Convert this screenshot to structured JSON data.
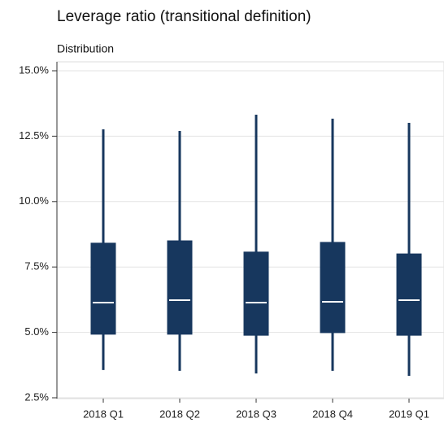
{
  "chart_data": {
    "type": "box",
    "title": "Leverage ratio (transitional definition)",
    "subtitle": "Distribution",
    "categories": [
      "2018 Q1",
      "2018 Q2",
      "2018 Q3",
      "2018 Q4",
      "2019 Q1"
    ],
    "whisker_low": [
      3.56,
      3.53,
      3.43,
      3.53,
      3.34
    ],
    "q1": [
      4.93,
      4.93,
      4.89,
      4.99,
      4.89
    ],
    "median": [
      6.14,
      6.23,
      6.14,
      6.17,
      6.23
    ],
    "q3": [
      8.41,
      8.5,
      8.07,
      8.44,
      8.0
    ],
    "whisker_high": [
      12.76,
      12.7,
      13.32,
      13.17,
      13.01
    ],
    "color": "#17375e",
    "median_color": "#ffffff",
    "ylim": [
      2.5,
      15
    ],
    "yticks": [
      {
        "value": 2.5,
        "label": "2.5%"
      },
      {
        "value": 5,
        "label": "5.0%"
      },
      {
        "value": 7.5,
        "label": "7.5%"
      },
      {
        "value": 10,
        "label": "10.0%"
      },
      {
        "value": 12.5,
        "label": "12.5%"
      },
      {
        "value": 15,
        "label": "15.0%"
      }
    ],
    "grid": true
  }
}
